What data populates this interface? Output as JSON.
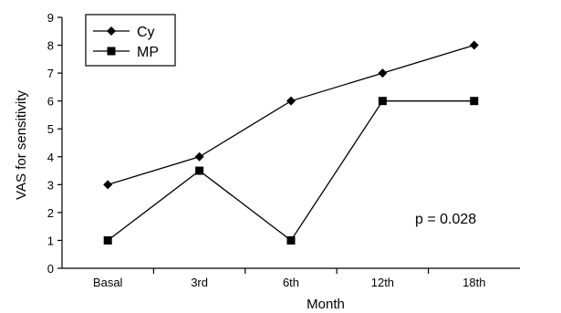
{
  "chart_data": {
    "type": "line",
    "categories": [
      "Basal",
      "3rd",
      "6th",
      "12th",
      "18th"
    ],
    "series": [
      {
        "name": "Cy",
        "marker": "diamond",
        "values": [
          3,
          4,
          6,
          7,
          8
        ]
      },
      {
        "name": "MP",
        "marker": "square",
        "values": [
          1,
          3.5,
          1,
          6,
          6
        ]
      }
    ],
    "xlabel": "Month",
    "ylabel": "VAS for sensitivity",
    "ylim": [
      0,
      9
    ],
    "yticks": [
      "0",
      "1",
      "2",
      "3",
      "4",
      "5",
      "6",
      "7",
      "8",
      "9"
    ],
    "grid": false,
    "legend": "top-left",
    "annotation": "p = 0.028",
    "colors": {
      "line": "#000000",
      "background": "#ffffff"
    }
  }
}
